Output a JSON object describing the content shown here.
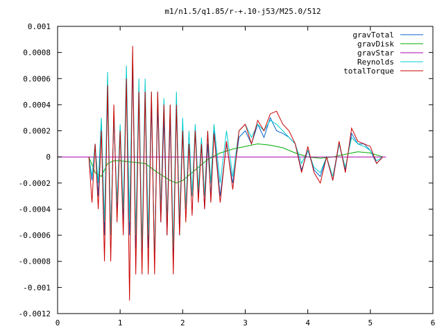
{
  "chart_data": {
    "type": "line",
    "title": "m1/n1.5/q1.85/r-+.10-j53/M25.0/512",
    "xlabel": "",
    "ylabel": "",
    "xlim": [
      0,
      6
    ],
    "ylim": [
      -0.0012,
      0.001
    ],
    "grid": false,
    "legend_position": "top-right",
    "xticks": [
      0,
      1,
      2,
      3,
      4,
      5,
      6
    ],
    "xtick_labels": [
      "0",
      "1",
      "2",
      "3",
      "4",
      "5",
      "6"
    ],
    "yticks": [
      0.001,
      0.0008,
      0.0006,
      0.0004,
      0.0002,
      0,
      -0.0002,
      -0.0004,
      -0.0006,
      -0.0008,
      -0.001,
      -0.0012
    ],
    "ytick_labels": [
      "0.001",
      "0.0008",
      "0.0006",
      "0.0004",
      "0.0002",
      "0",
      "-0.0002",
      "-0.0004",
      "-0.0006",
      "-0.0008",
      "-0.001",
      "-0.0012"
    ],
    "series": [
      {
        "name": "gravTotal",
        "color": "#0066cc",
        "x": [
          0.5,
          0.55,
          0.6,
          0.65,
          0.7,
          0.75,
          0.8,
          0.85,
          0.9,
          0.95,
          1.0,
          1.05,
          1.1,
          1.15,
          1.2,
          1.25,
          1.3,
          1.35,
          1.4,
          1.45,
          1.5,
          1.55,
          1.6,
          1.65,
          1.7,
          1.75,
          1.8,
          1.85,
          1.9,
          1.95,
          2.0,
          2.05,
          2.1,
          2.15,
          2.2,
          2.25,
          2.3,
          2.35,
          2.4,
          2.45,
          2.5,
          2.6,
          2.7,
          2.8,
          2.9,
          3.0,
          3.1,
          3.2,
          3.3,
          3.4,
          3.5,
          3.6,
          3.7,
          3.8,
          3.9,
          4.0,
          4.1,
          4.2,
          4.3,
          4.4,
          4.5,
          4.6,
          4.7,
          4.8,
          4.9,
          5.0,
          5.1,
          5.2
        ],
        "y": [
          0.0,
          -0.00018,
          0.0001,
          -0.0003,
          0.00025,
          -0.0006,
          0.0005,
          -0.0006,
          0.0003,
          -0.0004,
          0.0002,
          -0.0005,
          0.0006,
          -0.0006,
          0.0007,
          -0.0007,
          0.0005,
          -0.0008,
          0.0005,
          -0.0007,
          0.0004,
          -0.0008,
          0.0004,
          -0.0005,
          0.0003,
          -0.0006,
          0.0003,
          -0.0008,
          0.0004,
          -0.0006,
          0.0002,
          -0.0004,
          0.0001,
          -0.0003,
          0.0002,
          -0.0003,
          0.0001,
          -0.0004,
          0.0001,
          -0.0003,
          0.0002,
          -0.0003,
          0.0001,
          -0.0002,
          0.00015,
          0.0002,
          0.0001,
          0.00025,
          0.00015,
          0.0003,
          0.0002,
          0.00018,
          0.00015,
          0.0001,
          -0.0001,
          5e-05,
          -0.0001,
          -0.00015,
          0.0,
          -0.00018,
          0.0001,
          -0.0001,
          0.00018,
          0.0001,
          0.0001,
          5e-05,
          -5e-05,
          0.0
        ]
      },
      {
        "name": "gravDisk",
        "color": "#00aa00",
        "x": [
          0.5,
          0.6,
          0.7,
          0.8,
          0.9,
          1.0,
          1.2,
          1.4,
          1.6,
          1.8,
          1.9,
          2.0,
          2.1,
          2.2,
          2.4,
          2.6,
          2.8,
          3.0,
          3.2,
          3.4,
          3.6,
          3.8,
          4.0,
          4.2,
          4.4,
          4.6,
          4.8,
          5.0,
          5.2
        ],
        "y": [
          0.0,
          -0.00012,
          -0.00015,
          -5e-05,
          -3e-05,
          -3e-05,
          -4e-05,
          -5e-05,
          -0.00012,
          -0.00018,
          -0.0002,
          -0.00018,
          -0.00014,
          -0.0001,
          -2e-05,
          3e-05,
          6e-05,
          8e-05,
          0.0001,
          9e-05,
          7e-05,
          3e-05,
          0.0,
          -1e-05,
          0.0,
          2e-05,
          4e-05,
          3e-05,
          0.0
        ]
      },
      {
        "name": "gravStar",
        "color": "#aa00aa",
        "x": [
          0,
          5.25
        ],
        "y": [
          0,
          0
        ]
      },
      {
        "name": "Reynolds",
        "color": "#00cccc",
        "x": [
          0.5,
          0.55,
          0.6,
          0.65,
          0.7,
          0.75,
          0.8,
          0.85,
          0.9,
          0.95,
          1.0,
          1.05,
          1.1,
          1.15,
          1.2,
          1.25,
          1.3,
          1.35,
          1.4,
          1.45,
          1.5,
          1.55,
          1.6,
          1.65,
          1.7,
          1.75,
          1.8,
          1.85,
          1.9,
          1.95,
          2.0,
          2.05,
          2.1,
          2.15,
          2.2,
          2.25,
          2.3,
          2.35,
          2.4,
          2.45,
          2.5,
          2.6,
          2.7,
          2.8,
          2.9,
          3.0,
          3.1,
          3.2,
          3.3,
          3.4,
          3.5,
          3.6,
          3.7,
          3.8,
          3.9,
          4.0,
          4.1,
          4.2,
          4.3,
          4.4,
          4.5,
          4.6,
          4.7,
          4.8,
          4.9,
          5.0,
          5.1,
          5.2
        ],
        "y": [
          0.0,
          -0.00015,
          0.0001,
          -0.0002,
          0.0003,
          -0.0005,
          0.00065,
          -0.0006,
          0.0003,
          -0.00035,
          0.00025,
          -0.0004,
          0.0007,
          -0.0005,
          0.0008,
          -0.0006,
          0.0006,
          -0.0007,
          0.0006,
          -0.0006,
          0.0005,
          -0.0008,
          0.0005,
          -0.0004,
          0.00045,
          -0.0005,
          0.0004,
          -0.0007,
          0.0005,
          -0.0005,
          0.0003,
          -0.0004,
          0.0002,
          -0.0003,
          0.00025,
          -0.00025,
          0.00015,
          -0.0003,
          0.0002,
          -0.0002,
          0.00025,
          -0.0002,
          0.0002,
          -0.00015,
          0.0002,
          0.00025,
          0.00015,
          0.00025,
          0.0002,
          0.00028,
          0.00025,
          0.0002,
          0.00015,
          0.0001,
          -5e-05,
          5e-05,
          -8e-05,
          -0.00012,
          0.0,
          -0.00015,
          0.0001,
          -8e-05,
          0.00015,
          0.0001,
          8e-05,
          5e-05,
          -3e-05,
          0.0
        ]
      },
      {
        "name": "totalTorque",
        "color": "#cc0000",
        "x": [
          0.5,
          0.55,
          0.6,
          0.65,
          0.7,
          0.75,
          0.8,
          0.85,
          0.9,
          0.95,
          1.0,
          1.05,
          1.1,
          1.15,
          1.2,
          1.25,
          1.3,
          1.35,
          1.4,
          1.45,
          1.5,
          1.55,
          1.6,
          1.65,
          1.7,
          1.75,
          1.8,
          1.85,
          1.9,
          1.95,
          2.0,
          2.05,
          2.1,
          2.15,
          2.2,
          2.25,
          2.3,
          2.35,
          2.4,
          2.45,
          2.5,
          2.6,
          2.7,
          2.8,
          2.9,
          3.0,
          3.1,
          3.2,
          3.3,
          3.4,
          3.5,
          3.6,
          3.7,
          3.8,
          3.9,
          4.0,
          4.1,
          4.2,
          4.3,
          4.4,
          4.5,
          4.6,
          4.7,
          4.8,
          4.9,
          5.0,
          5.1,
          5.2
        ],
        "y": [
          0.0,
          -0.00035,
          0.0001,
          -0.0004,
          0.0002,
          -0.0008,
          0.00055,
          -0.0008,
          0.0004,
          -0.0005,
          0.0002,
          -0.0006,
          0.0006,
          -0.0011,
          0.00085,
          -0.0009,
          0.0005,
          -0.0009,
          0.0005,
          -0.0009,
          0.0005,
          -0.0009,
          0.0005,
          -0.0005,
          0.0004,
          -0.0006,
          0.0004,
          -0.0009,
          0.0004,
          -0.0006,
          0.0002,
          -0.0005,
          0.0001,
          -0.00045,
          0.0002,
          -0.00035,
          0.0001,
          -0.0004,
          0.0002,
          -0.00035,
          0.00018,
          -0.00035,
          0.00012,
          -0.00025,
          0.0002,
          0.00025,
          0.0001,
          0.00028,
          0.0002,
          0.00033,
          0.00035,
          0.00025,
          0.0002,
          0.0001,
          -0.00012,
          8e-05,
          -0.00012,
          -0.0002,
          0.0,
          -0.00018,
          0.00012,
          -0.00012,
          0.00022,
          0.00012,
          0.0001,
          8e-05,
          -5e-05,
          0.0
        ]
      }
    ]
  }
}
